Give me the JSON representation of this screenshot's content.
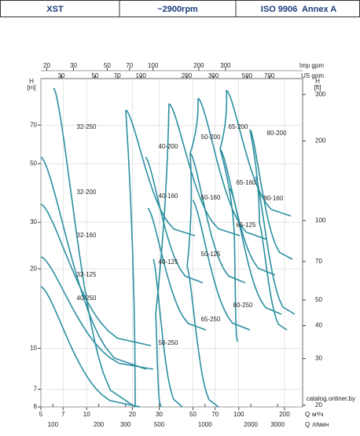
{
  "header": [
    "XST",
    "~2900rpm",
    "ISO 9906  Annex A"
  ],
  "axes": {
    "imp_gpm": {
      "label": "Imp gpm",
      "lim": [
        18.3,
        964
      ],
      "ticks": [
        20,
        30,
        50,
        70,
        100,
        200,
        300
      ],
      "log": true
    },
    "us_gpm": {
      "label": "US gpm",
      "lim": [
        22,
        1158
      ],
      "ticks": [
        30,
        50,
        70,
        100,
        200,
        300,
        500,
        700
      ],
      "log": true
    },
    "q_m3h": {
      "label": "Q",
      "unit": "м³/ч",
      "lim": [
        5,
        263
      ],
      "ticks": [
        5,
        7,
        10,
        20,
        30,
        50,
        70,
        100,
        200
      ],
      "log": true
    },
    "q_lmin": {
      "label": "Q",
      "unit": "л/мин",
      "lim": [
        83.3,
        4383
      ],
      "ticks": [
        100,
        200,
        300,
        500,
        1000,
        2000,
        3000
      ],
      "log": true
    },
    "h_m": {
      "label": "H",
      "unit": "[m]",
      "lim": [
        6,
        105
      ],
      "ticks": [
        6,
        7,
        10,
        20,
        30,
        50,
        70
      ],
      "log": true
    },
    "h_ft": {
      "label": "H",
      "unit": "[ft]",
      "lim": [
        19.7,
        344.5
      ],
      "ticks": [
        20,
        30,
        40,
        50,
        70,
        100,
        200,
        300
      ],
      "log": true
    }
  },
  "tiles": [
    "32-250",
    "32-200",
    "32-160",
    "32-125",
    "40-250",
    "40-200",
    "40-160",
    "40-125",
    "50-250",
    "50-200",
    "50-160",
    "50-125",
    "65-250",
    "65-200",
    "65-160",
    "65-125",
    "80-250",
    "80-200",
    "80-160"
  ],
  "watermark": "catalog.onliner.by"
}
